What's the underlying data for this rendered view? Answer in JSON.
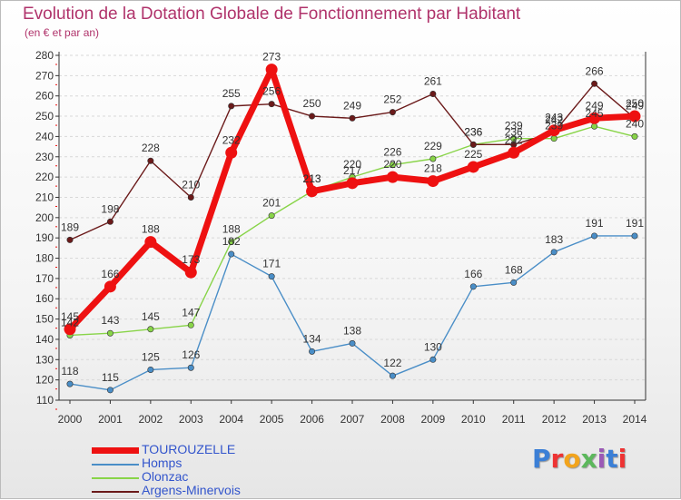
{
  "title": "Evolution de la Dotation Globale de Fonctionnement par Habitant",
  "subtitle": "(en € et par an)",
  "logo_text": "Proxiti",
  "chart_data": {
    "type": "line",
    "title": "Evolution de la Dotation Globale de Fonctionnement par Habitant",
    "subtitle": "(en € et par an)",
    "x": [
      2000,
      2001,
      2002,
      2003,
      2004,
      2005,
      2006,
      2007,
      2008,
      2009,
      2010,
      2011,
      2012,
      2013,
      2014
    ],
    "ylim": [
      110,
      280
    ],
    "yticks": [
      110,
      120,
      130,
      140,
      150,
      160,
      170,
      180,
      190,
      200,
      210,
      220,
      230,
      240,
      250,
      260,
      270,
      280
    ],
    "grid": "horizontal dashed",
    "legend_position": "bottom-left",
    "series": [
      {
        "name": "TOUROUZELLE",
        "color": "#ee1111",
        "values": [
          145,
          166,
          188,
          173,
          232,
          273,
          213,
          217,
          220,
          218,
          225,
          232,
          243,
          249,
          250
        ]
      },
      {
        "name": "Homps",
        "color": "#4a8ec7",
        "values": [
          118,
          115,
          125,
          126,
          182,
          171,
          134,
          138,
          122,
          130,
          166,
          168,
          183,
          191,
          191
        ]
      },
      {
        "name": "Olonzac",
        "color": "#88d448",
        "values": [
          142,
          143,
          145,
          147,
          188,
          201,
          213,
          220,
          226,
          229,
          236,
          239,
          239,
          245,
          240
        ]
      },
      {
        "name": "Argens-Minervois",
        "color": "#6b1a1a",
        "values": [
          189,
          198,
          228,
          210,
          255,
          256,
          250,
          249,
          252,
          261,
          236,
          236,
          242,
          266,
          249
        ]
      }
    ]
  }
}
